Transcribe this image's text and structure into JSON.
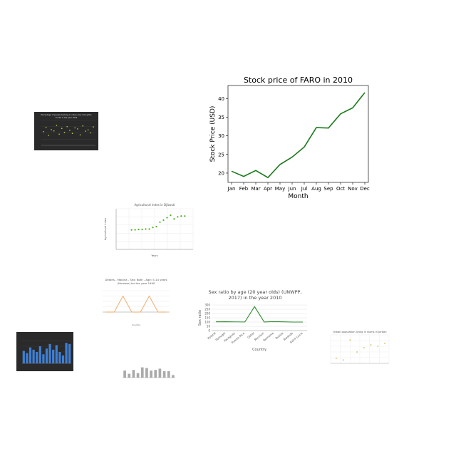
{
  "chart_data": [
    {
      "id": "main",
      "type": "line",
      "title": "Stock price of FARO in 2010",
      "xlabel": "Month",
      "ylabel": "Stock Price (USD)",
      "categories": [
        "Jan",
        "Feb",
        "Mar",
        "Apr",
        "May",
        "Jun",
        "Jul",
        "Aug",
        "Sep",
        "Oct",
        "Nov",
        "Dec"
      ],
      "values": [
        20.5,
        19.1,
        20.7,
        18.8,
        22.3,
        24.3,
        27.0,
        32.2,
        32.1,
        35.9,
        37.5,
        41.6
      ],
      "ylim": [
        17.5,
        43.5
      ],
      "yticks": [
        20,
        25,
        30,
        35,
        40
      ],
      "color": "#1a7a1a",
      "grid": false
    },
    {
      "id": "sex_ratio",
      "type": "line",
      "title": "Sex ratio by age (20 year olds) (UNWPP, 2017) in the year 2010",
      "xlabel": "Country",
      "ylabel": "Sex ratio",
      "categories": [
        "Poland",
        "Portugal",
        "Paraguay",
        "Puerto Rico",
        "Qatar",
        "Reunion",
        "Romania",
        "Russia",
        "Rwanda",
        "Saint Lucia"
      ],
      "values": [
        103,
        104,
        102,
        101,
        281,
        101,
        105,
        103,
        100,
        100
      ],
      "ylim": [
        0,
        300
      ],
      "yticks": [
        0,
        50,
        100,
        150,
        200,
        250,
        300
      ],
      "color": "#2e8b2e",
      "grid": true
    },
    {
      "id": "agri",
      "type": "scatter",
      "title": "Agricultural index in Djibouti",
      "xlabel": "Years",
      "ylabel": "Agricultural index",
      "x": [
        1963,
        1966,
        1969,
        1972,
        1975,
        1978,
        1981,
        1984,
        1987,
        1990,
        1993,
        1996,
        1999,
        2002,
        2005,
        2008
      ],
      "values": [
        48,
        48,
        49,
        49,
        50,
        50,
        54,
        56,
        67,
        72,
        78,
        84,
        75,
        80,
        82,
        82
      ],
      "ylim": [
        0,
        100
      ],
      "xlim": [
        1950,
        2015
      ],
      "color": "#4caf20",
      "grid": true
    },
    {
      "id": "deaths",
      "type": "line",
      "title": "Deaths - Malaria - Sex: Both - Age: 5-14 years (Number) for the year 1990",
      "xlabel": "Country",
      "ylabel": "",
      "values": [
        0,
        0,
        3,
        0,
        0,
        3,
        0,
        0
      ],
      "ylim": [
        0,
        4
      ],
      "color": "#f0a868",
      "grid": true
    },
    {
      "id": "dark_scatter",
      "type": "scatter",
      "title": "Percentage of people working in urban area during the month in the year 2004",
      "xlabel": "",
      "ylabel": "",
      "values": [
        55,
        72,
        40,
        63,
        58,
        80,
        45,
        68,
        52,
        75,
        60,
        48,
        70,
        66,
        42,
        78,
        57,
        62,
        50,
        74
      ],
      "ylim": [
        0,
        100
      ],
      "color": "#c8d640",
      "grid": true
    },
    {
      "id": "dark_bar",
      "type": "bar",
      "title": "",
      "xlabel": "",
      "ylabel": "",
      "values": [
        55,
        45,
        70,
        60,
        50,
        75,
        40,
        65,
        85,
        60,
        80,
        50,
        35,
        90,
        85
      ],
      "ylim": [
        0,
        100
      ],
      "color": "#3f7fd4",
      "grid": true
    },
    {
      "id": "gray_bar",
      "type": "bar",
      "title": "",
      "xlabel": "",
      "ylabel": "",
      "values": [
        55,
        30,
        60,
        35,
        80,
        75,
        55,
        60,
        70,
        50,
        50,
        20
      ],
      "ylim": [
        0,
        100
      ],
      "color": "#aaaaaa",
      "grid": false
    },
    {
      "id": "urban_jordan",
      "type": "scatter",
      "title": "Urban population living in slums in Jordan",
      "xlabel": "",
      "ylabel": "",
      "values": [
        18,
        12,
        82,
        40,
        55,
        65,
        60,
        70
      ],
      "ylim": [
        0,
        100
      ],
      "color": "#d8b84a",
      "grid": true
    }
  ]
}
